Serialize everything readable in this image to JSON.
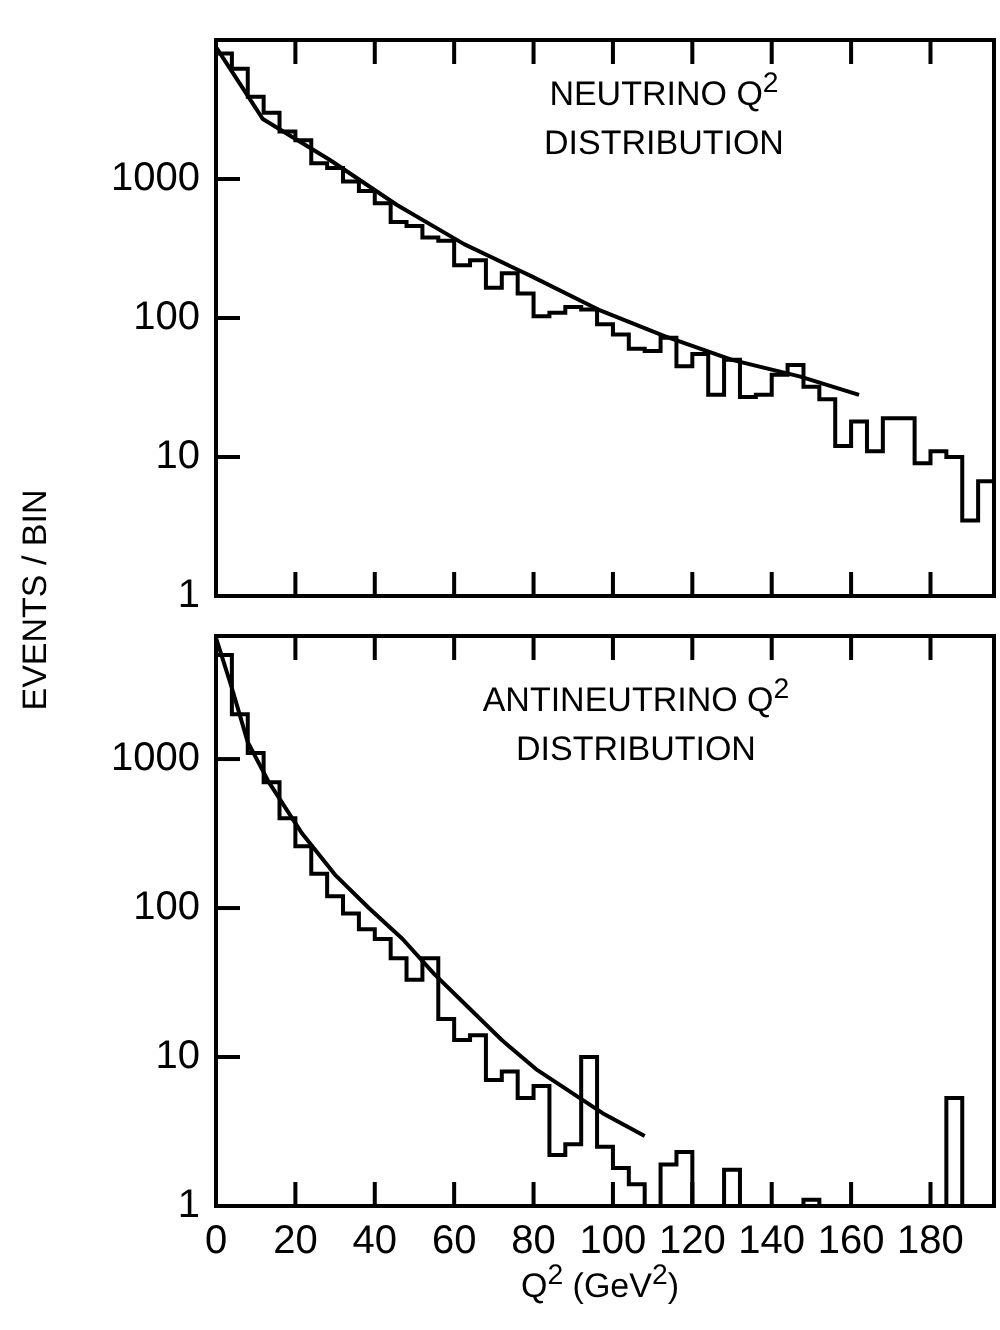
{
  "chart_data": [
    {
      "type": "histogram",
      "title": "NEUTRINO Q$^{2}$ DISTRIBUTION",
      "ylabel": "EVENTS / BIN",
      "log": "y",
      "tick_labels": "y",
      "xlim": [
        0,
        196
      ],
      "xticks": [
        0,
        20,
        40,
        60,
        80,
        100,
        120,
        140,
        160,
        180
      ],
      "ylim": [
        1,
        10000
      ],
      "yticks": [
        1,
        10,
        100,
        1000
      ],
      "bins": [
        0,
        4,
        8,
        12,
        16,
        20,
        24,
        28,
        32,
        36,
        40,
        44,
        48,
        52,
        56,
        60,
        64,
        68,
        72,
        76,
        80,
        84,
        88,
        92,
        96,
        100,
        104,
        108,
        112,
        116,
        120,
        124,
        128,
        132,
        136,
        140,
        144,
        148,
        152,
        156,
        160,
        164,
        168,
        172,
        176,
        180,
        184,
        188,
        192,
        196
      ],
      "series": [
        {
          "type": "histogram",
          "color": "#000000",
          "values": [
            8000,
            6200,
            3900,
            3000,
            2200,
            1900,
            1300,
            1200,
            960,
            820,
            670,
            490,
            460,
            380,
            360,
            240,
            260,
            165,
            210,
            150,
            103,
            109,
            120,
            115,
            90,
            76,
            60,
            58,
            72,
            45,
            55,
            28,
            50,
            27,
            28,
            39,
            46,
            32,
            26,
            12,
            18,
            11,
            19,
            19,
            9,
            11,
            10,
            3.5,
            6.7
          ]
        },
        {
          "type": "line",
          "color": "#000000",
          "marker": "none",
          "x": [
            0,
            11.8,
            28.7,
            45.6,
            62.5,
            79.4,
            96.3,
            113,
            130,
            147,
            162
          ],
          "values": [
            8900,
            2700,
            1370,
            650,
            340,
            200,
            115,
            74,
            50,
            38,
            28
          ]
        }
      ]
    },
    {
      "type": "histogram",
      "title": "ANTINEUTRINO Q$^{2}$ DISTRIBUTION",
      "xlabel": "Q$^{2}$ (GeV$^{2}$)",
      "log": "y",
      "xlim": [
        0,
        196
      ],
      "xticks": [
        0,
        20,
        40,
        60,
        80,
        100,
        120,
        140,
        160,
        180
      ],
      "ylim": [
        1,
        6700
      ],
      "yticks": [
        1,
        10,
        100,
        1000
      ],
      "bins": [
        0,
        4,
        8,
        12,
        16,
        20,
        24,
        28,
        32,
        36,
        40,
        44,
        48,
        52,
        56,
        60,
        64,
        68,
        72,
        76,
        80,
        84,
        88,
        92,
        96,
        100,
        104,
        108,
        112,
        116,
        120,
        124,
        128,
        132,
        136,
        140,
        144,
        148,
        152,
        156,
        160,
        164,
        168,
        172,
        176,
        180,
        184,
        188,
        192,
        196
      ],
      "series": [
        {
          "type": "histogram",
          "color": "#000000",
          "values": [
            5000,
            2000,
            1100,
            700,
            400,
            260,
            170,
            120,
            92,
            72,
            62,
            46,
            33,
            46,
            18,
            13,
            14,
            7,
            8,
            5.3,
            6.4,
            2.2,
            2.6,
            10,
            2.5,
            1.8,
            1.4,
            1,
            1.9,
            2.3,
            1,
            1,
            1.75,
            1,
            1,
            1,
            1,
            1.1,
            1,
            1,
            1,
            1,
            1,
            1,
            1,
            1,
            5.3,
            1,
            1
          ]
        },
        {
          "type": "line",
          "color": "#000000",
          "marker": "none",
          "x": [
            0,
            4,
            8,
            13.3,
            21.7,
            30,
            38.5,
            47,
            55,
            64,
            72,
            80.6,
            89,
            97.4,
            108
          ],
          "values": [
            6500,
            3000,
            1300,
            700,
            316,
            167,
            100,
            62,
            36,
            21,
            13,
            8.3,
            5.9,
            4.2,
            2.95
          ]
        }
      ]
    }
  ]
}
